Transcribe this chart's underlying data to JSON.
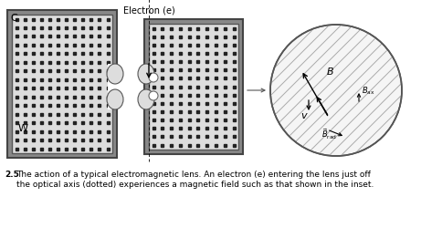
{
  "bg_color": "#ffffff",
  "label_C": "C",
  "label_W": "W",
  "label_electron": "Electron (e)",
  "label_B": "B",
  "label_v": "v",
  "caption_bold": "2.5",
  "caption_text": " The action of a typical electromagnetic lens. An electron (e) entering the lens just off\nthe optical axis (dotted) experiences a magnetic field such as that shown in the inset.",
  "outer_border_color": "#666666",
  "inner_fill_color": "#bbbbbb",
  "inner_border_color": "#888888",
  "dot_color": "#222222",
  "hatch_color": "#999999",
  "arrow_color": "#111111"
}
